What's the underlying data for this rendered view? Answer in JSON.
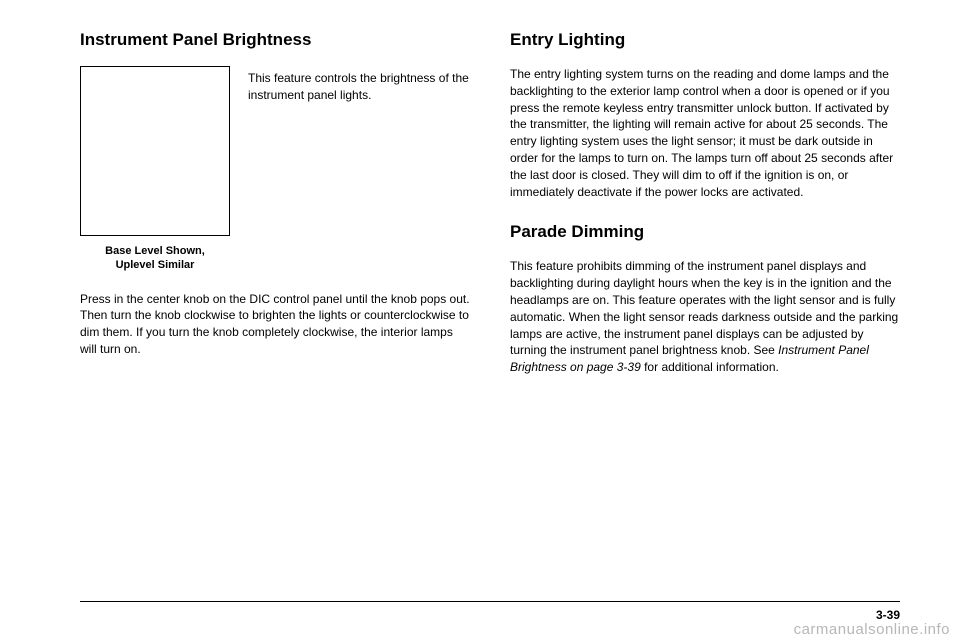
{
  "leftColumn": {
    "heading": "Instrument Panel Brightness",
    "sideText": "This feature controls the brightness of the instrument panel lights.",
    "captionLine1": "Base Level Shown,",
    "captionLine2": "Uplevel Similar",
    "body1": "Press in the center knob on the DIC control panel until the knob pops out. Then turn the knob clockwise to brighten the lights or counterclockwise to dim them. If you turn the knob completely clockwise, the interior lamps will turn on."
  },
  "rightColumn": {
    "heading1": "Entry Lighting",
    "body1": "The entry lighting system turns on the reading and dome lamps and the backlighting to the exterior lamp control when a door is opened or if you press the remote keyless entry transmitter unlock button. If activated by the transmitter, the lighting will remain active for about 25 seconds. The entry lighting system uses the light sensor; it must be dark outside in order for the lamps to turn on. The lamps turn off about 25 seconds after the last door is closed. They will dim to off if the ignition is on, or immediately deactivate if the power locks are activated.",
    "heading2": "Parade Dimming",
    "body2a": "This feature prohibits dimming of the instrument panel displays and backlighting during daylight hours when the key is in the ignition and the headlamps are on. This feature operates with the light sensor and is fully automatic. When the light sensor reads darkness outside and the parking lamps are active, the instrument panel displays can be adjusted by turning the instrument panel brightness knob. See ",
    "body2b": "Instrument Panel Brightness on page 3-39",
    "body2c": " for additional information."
  },
  "pageNumber": "3-39",
  "watermark": "carmanualsonline.info"
}
